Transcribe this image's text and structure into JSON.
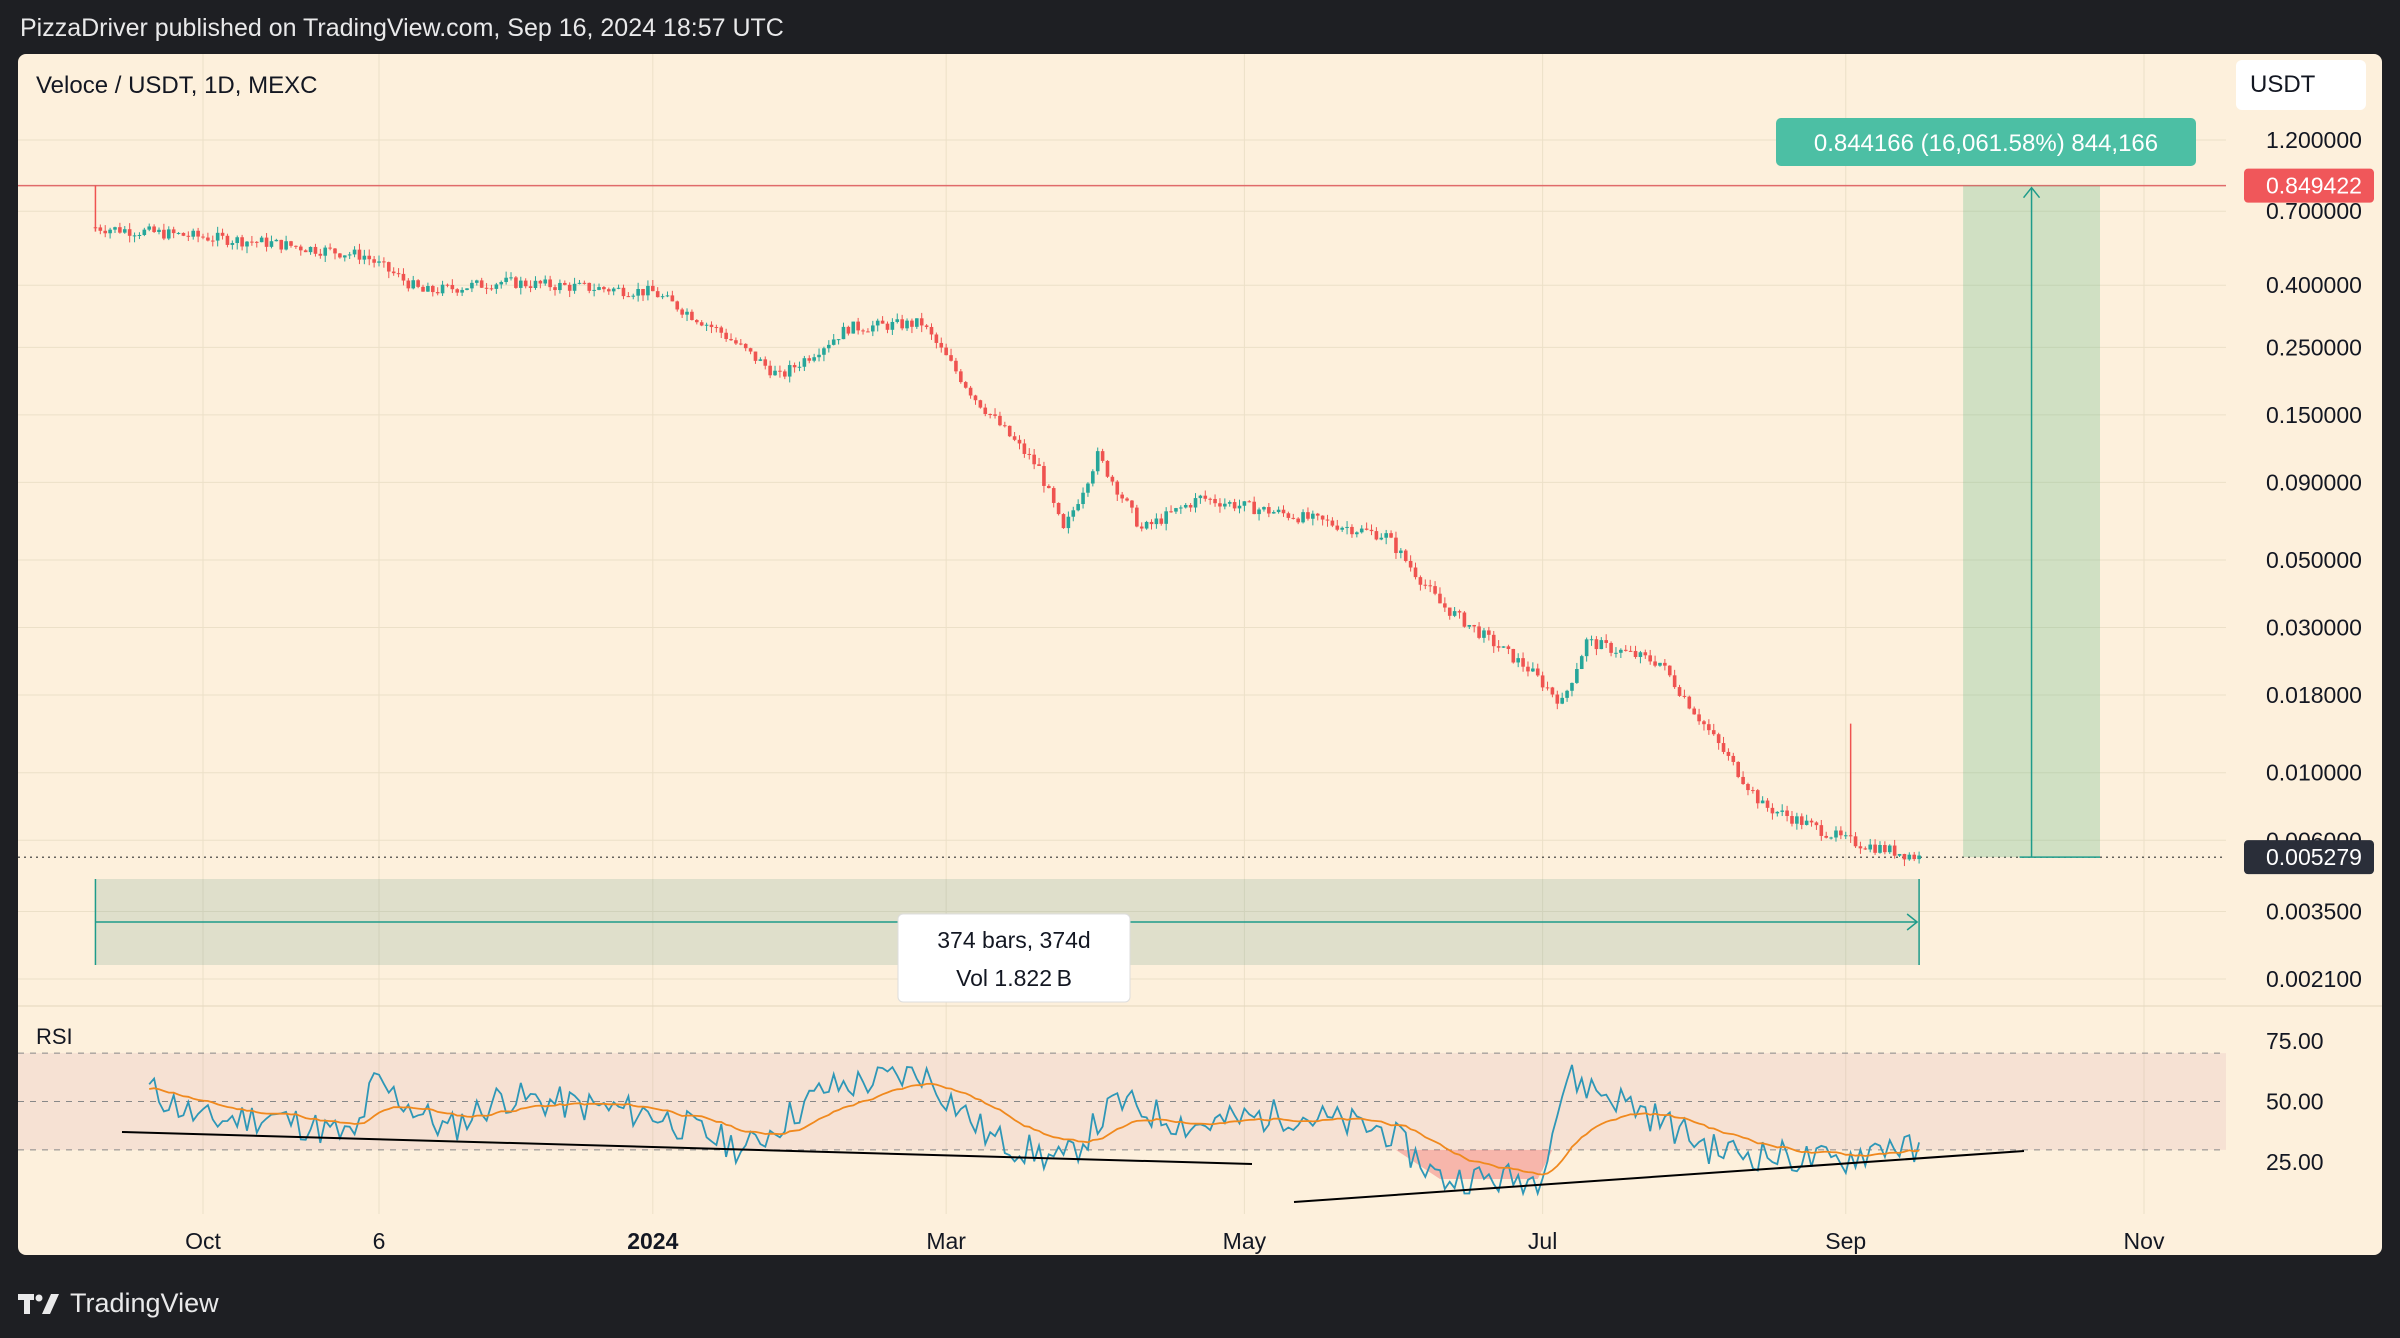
{
  "publisher_line": "PizzaDriver published on TradingView.com, Sep 16, 2024 18:57 UTC",
  "symbol_line": "Veloce / USDT, 1D, MEXC",
  "currency": "USDT",
  "footer_brand": "TradingView",
  "colors": {
    "background": "#fdf0dc",
    "up": "#26a69a",
    "down": "#ef5350",
    "rsi_line": "#2e97b7",
    "rsi_ma": "#f0891e"
  },
  "chart_data": {
    "type": "candlestick",
    "y_scale": "log",
    "price_ticks": [
      "1.200000",
      "0.700000",
      "0.400000",
      "0.250000",
      "0.150000",
      "0.090000",
      "0.050000",
      "0.030000",
      "0.018000",
      "0.010000",
      "0.006000",
      "0.003500",
      "0.002100"
    ],
    "x_ticks": [
      "Oct",
      "6",
      "2024",
      "Mar",
      "May",
      "Jul",
      "Sep",
      "Nov"
    ],
    "price_path": [
      {
        "date": "2023-09-09",
        "close": 0.62
      },
      {
        "date": "2023-10-15",
        "close": 0.55
      },
      {
        "date": "2023-11-03",
        "close": 0.5
      },
      {
        "date": "2023-11-15",
        "close": 0.38
      },
      {
        "date": "2023-12-01",
        "close": 0.41
      },
      {
        "date": "2024-01-01",
        "close": 0.38
      },
      {
        "date": "2024-01-15",
        "close": 0.28
      },
      {
        "date": "2024-01-27",
        "close": 0.2
      },
      {
        "date": "2024-02-10",
        "close": 0.29
      },
      {
        "date": "2024-02-25",
        "close": 0.3
      },
      {
        "date": "2024-03-07",
        "close": 0.17
      },
      {
        "date": "2024-03-20",
        "close": 0.1
      },
      {
        "date": "2024-03-25",
        "close": 0.062
      },
      {
        "date": "2024-04-01",
        "close": 0.11
      },
      {
        "date": "2024-04-10",
        "close": 0.063
      },
      {
        "date": "2024-04-22",
        "close": 0.08
      },
      {
        "date": "2024-05-15",
        "close": 0.068
      },
      {
        "date": "2024-05-30",
        "close": 0.06
      },
      {
        "date": "2024-06-10",
        "close": 0.036
      },
      {
        "date": "2024-06-28",
        "close": 0.022
      },
      {
        "date": "2024-07-05",
        "close": 0.017
      },
      {
        "date": "2024-07-10",
        "close": 0.027
      },
      {
        "date": "2024-07-25",
        "close": 0.023
      },
      {
        "date": "2024-08-05",
        "close": 0.013
      },
      {
        "date": "2024-08-15",
        "close": 0.0078
      },
      {
        "date": "2024-09-01",
        "close": 0.006
      },
      {
        "date": "2024-09-16",
        "close": 0.005279
      }
    ],
    "last_price": "0.005279",
    "target_price": "0.849422",
    "measure_label": "0.844166 (16,061.58%) 844,166",
    "range_label": "374 bars, 374d",
    "volume_label": "Vol 1.822 B",
    "rsi": {
      "label": "RSI",
      "ticks": [
        "75.00",
        "50.00",
        "25.00"
      ],
      "bands": [
        70,
        50,
        30
      ],
      "values": [
        {
          "date": "2023-09-20",
          "value": 55
        },
        {
          "date": "2023-10-01",
          "value": 42
        },
        {
          "date": "2023-10-15",
          "value": 44
        },
        {
          "date": "2023-11-01",
          "value": 35
        },
        {
          "date": "2023-11-05",
          "value": 58
        },
        {
          "date": "2023-11-20",
          "value": 38
        },
        {
          "date": "2023-12-01",
          "value": 52
        },
        {
          "date": "2024-01-01",
          "value": 45
        },
        {
          "date": "2024-01-20",
          "value": 30
        },
        {
          "date": "2024-02-05",
          "value": 55
        },
        {
          "date": "2024-02-25",
          "value": 62
        },
        {
          "date": "2024-03-10",
          "value": 35
        },
        {
          "date": "2024-03-25",
          "value": 25
        },
        {
          "date": "2024-04-05",
          "value": 50
        },
        {
          "date": "2024-04-20",
          "value": 40
        },
        {
          "date": "2024-05-10",
          "value": 45
        },
        {
          "date": "2024-05-30",
          "value": 38
        },
        {
          "date": "2024-06-10",
          "value": 18
        },
        {
          "date": "2024-06-30",
          "value": 18
        },
        {
          "date": "2024-07-06",
          "value": 60
        },
        {
          "date": "2024-07-20",
          "value": 48
        },
        {
          "date": "2024-08-05",
          "value": 30
        },
        {
          "date": "2024-08-30",
          "value": 25
        },
        {
          "date": "2024-09-10",
          "value": 33
        },
        {
          "date": "2024-09-16",
          "value": 28
        }
      ]
    }
  }
}
